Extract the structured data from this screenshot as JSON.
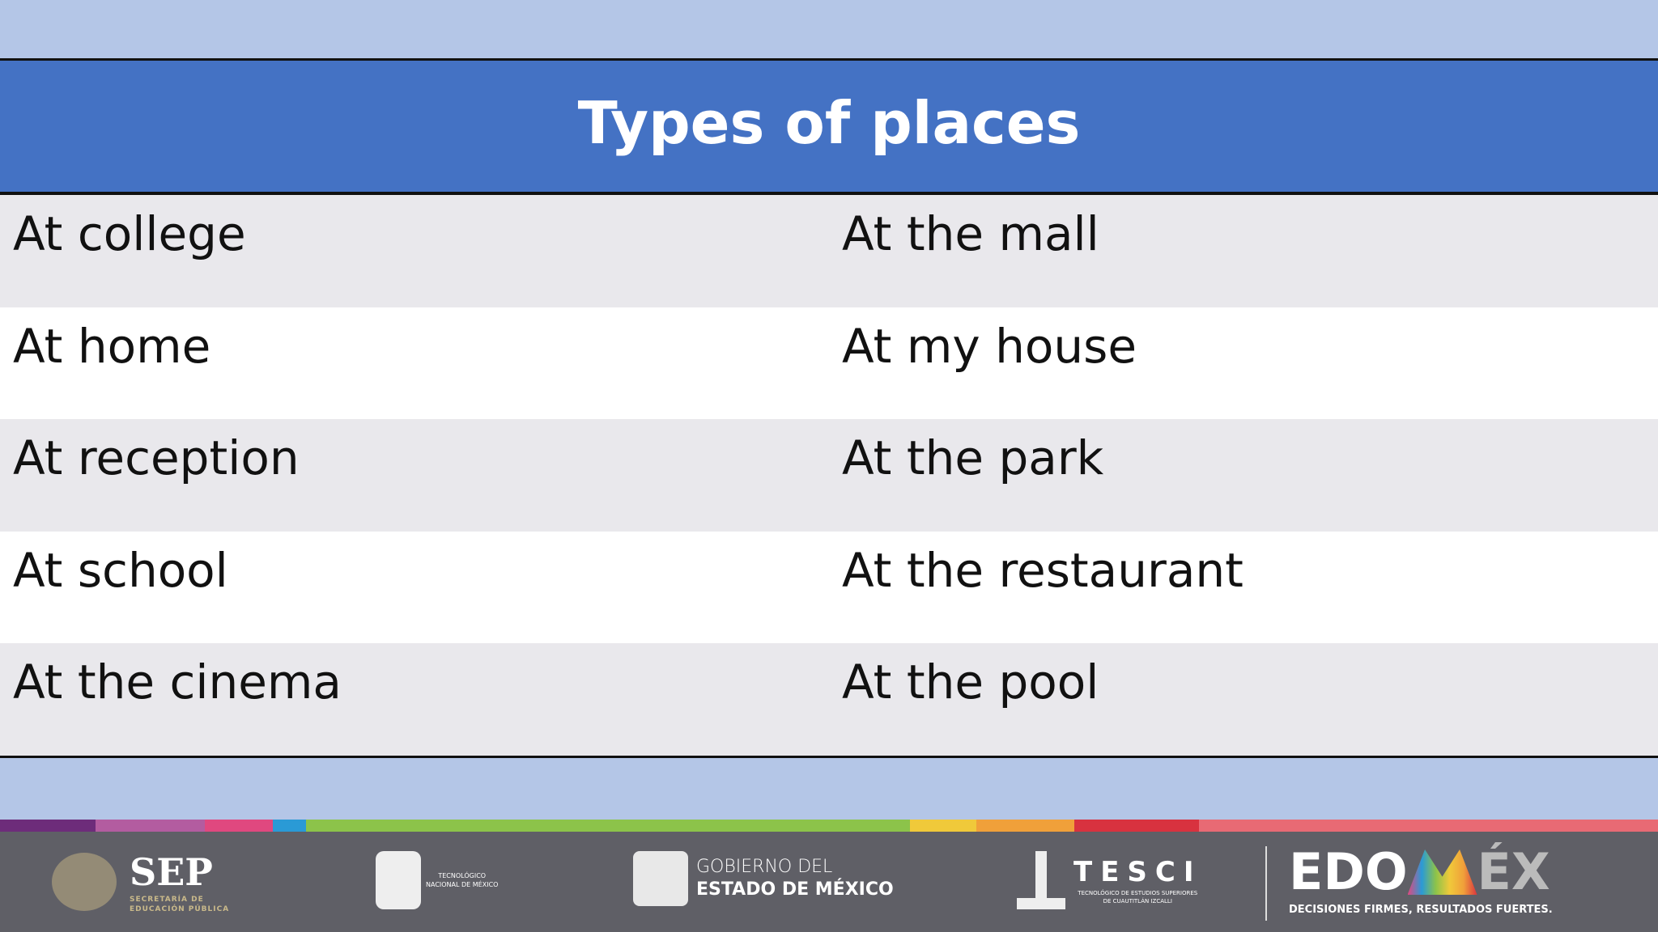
{
  "table": {
    "title": "Types of places",
    "rows": [
      [
        "At college",
        "At the mall"
      ],
      [
        "At home",
        "At my house"
      ],
      [
        "At reception",
        "At the park"
      ],
      [
        "At school",
        "At the restaurant"
      ],
      [
        "At the cinema",
        "At the pool"
      ]
    ]
  },
  "footer": {
    "sep": {
      "name": "SEP",
      "sub1": "SECRETARÍA DE",
      "sub2": "EDUCACIÓN PÚBLICA"
    },
    "tecnm": {
      "line1": "TECNOLÓGICO",
      "line2": "NACIONAL DE MÉXICO"
    },
    "gobierno": {
      "line1": "GOBIERNO DEL",
      "line2": "ESTADO DE MÉXICO"
    },
    "tesci": {
      "name": "TESCI",
      "sub1": "TECNOLÓGICO DE ESTUDIOS SUPERIORES",
      "sub2": "DE CUAUTITLÁN IZCALLI"
    },
    "edomex": {
      "name_a": "EDO",
      "name_b": "ÉX",
      "slogan": "DECISIONES FIRMES, RESULTADOS FUERTES."
    }
  },
  "colors": {
    "header": "#4472c4",
    "band": "#b4c6e7",
    "footer": "#5f5f66",
    "stripe": [
      "#6d2c7a",
      "#b35ca0",
      "#e0487f",
      "#2a9ad6",
      "#8cc34a",
      "#f0c93a",
      "#f0a03a",
      "#d8323f",
      "#e86a74"
    ]
  }
}
